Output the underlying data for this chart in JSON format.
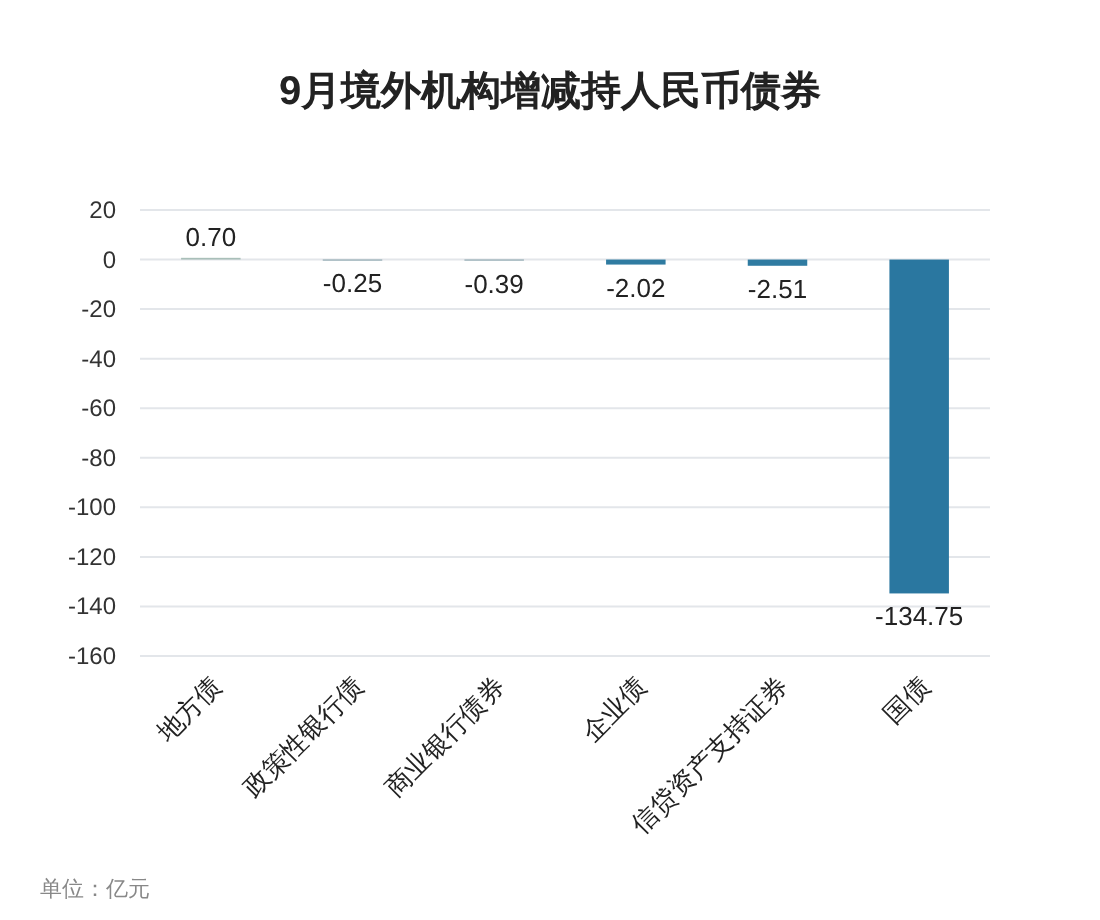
{
  "chart_data": {
    "type": "bar",
    "title": "9月境外机构增减持人民币债券",
    "categories": [
      "地方债",
      "政策性银行债",
      "商业银行债券",
      "企业债",
      "信贷资产支持证券",
      "国债"
    ],
    "values": [
      0.7,
      -0.25,
      -0.39,
      -2.02,
      -2.51,
      -134.75
    ],
    "colors": [
      "#a9bfb9",
      "#7f9ca6",
      "#7f9ca6",
      "#2f7ba1",
      "#2f7ba1",
      "#2a77a0"
    ],
    "ylim": [
      -160,
      20
    ],
    "yticks": [
      20,
      0,
      -20,
      -40,
      -60,
      -80,
      -100,
      -120,
      -140,
      -160
    ],
    "grid": "y",
    "value_labels": [
      "0.70",
      "-0.25",
      "-0.39",
      "-2.02",
      "-2.51",
      "-134.75"
    ],
    "annotations": [
      "单位：亿元"
    ]
  }
}
